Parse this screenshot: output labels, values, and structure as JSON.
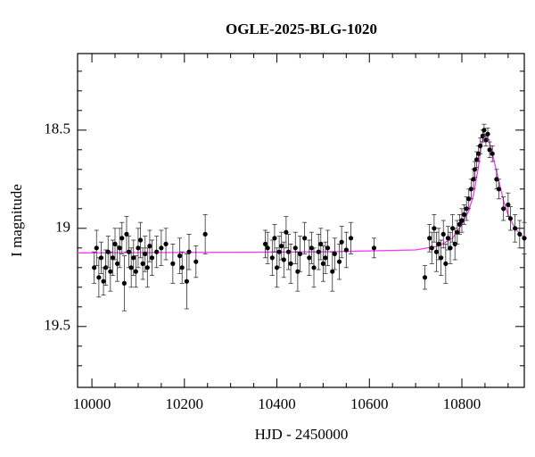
{
  "chart_data": {
    "type": "scatter",
    "title": "OGLE-2025-BLG-1020",
    "x_label": "HJD - 2450000",
    "y_label": "I magnitude",
    "xlim": [
      9969,
      10935
    ],
    "ylim": [
      19.81,
      18.11
    ],
    "xticks": [
      10000,
      10200,
      10400,
      10600,
      10800
    ],
    "xticks_minor": [
      10050,
      10100,
      10150,
      10250,
      10300,
      10350,
      10450,
      10500,
      10550,
      10650,
      10700,
      10750,
      10850,
      10900
    ],
    "yticks": [
      18.5,
      19,
      19.5
    ],
    "yticks_minor": [
      18.2,
      18.3,
      18.4,
      18.6,
      18.7,
      18.8,
      18.9,
      19.1,
      19.2,
      19.3,
      19.4,
      19.6,
      19.7
    ],
    "color": "#000000",
    "x": [
      10005,
      10010,
      10015,
      10020,
      10025,
      10030,
      10035,
      10040,
      10045,
      10050,
      10055,
      10060,
      10065,
      10070,
      10075,
      10080,
      10085,
      10090,
      10095,
      10100,
      10105,
      10110,
      10115,
      10120,
      10125,
      10130,
      10140,
      10150,
      10160,
      10175,
      10190,
      10195,
      10205,
      10210,
      10225,
      10245,
      10375,
      10380,
      10390,
      10395,
      10400,
      10405,
      10410,
      10415,
      10420,
      10425,
      10430,
      10440,
      10445,
      10450,
      10460,
      10470,
      10475,
      10480,
      10490,
      10495,
      10500,
      10505,
      10510,
      10520,
      10525,
      10535,
      10540,
      10550,
      10560,
      10610,
      10720,
      10730,
      10735,
      10740,
      10745,
      10750,
      10755,
      10760,
      10765,
      10770,
      10775,
      10780,
      10785,
      10790,
      10795,
      10800,
      10805,
      10810,
      10815,
      10820,
      10825,
      10828,
      10832,
      10836,
      10840,
      10845,
      10848,
      10852,
      10856,
      10860,
      10866,
      10875,
      10880,
      10890,
      10900,
      10905,
      10915,
      10925,
      10935
    ],
    "values": [
      19.2,
      19.1,
      19.25,
      19.15,
      19.27,
      19.2,
      19.12,
      19.22,
      19.15,
      19.08,
      19.18,
      19.1,
      19.05,
      19.28,
      19.03,
      19.12,
      19.2,
      19.15,
      19.22,
      19.1,
      19.06,
      19.18,
      19.13,
      19.2,
      19.09,
      19.15,
      19.12,
      19.1,
      19.08,
      19.18,
      19.14,
      19.2,
      19.27,
      19.12,
      19.17,
      19.03,
      19.08,
      19.1,
      19.15,
      19.05,
      19.2,
      19.12,
      19.09,
      19.16,
      19.02,
      19.12,
      19.18,
      19.1,
      19.22,
      19.13,
      19.05,
      19.15,
      19.1,
      19.2,
      19.12,
      19.08,
      19.18,
      19.15,
      19.1,
      19.22,
      19.13,
      19.17,
      19.07,
      19.11,
      19.05,
      19.1,
      19.25,
      19.05,
      19.1,
      19.0,
      19.12,
      19.08,
      19.15,
      19.03,
      19.18,
      19.05,
      19.1,
      19.0,
      19.08,
      19.02,
      18.98,
      18.96,
      18.93,
      18.9,
      18.85,
      18.8,
      18.75,
      18.7,
      18.65,
      18.62,
      18.58,
      18.53,
      18.5,
      18.55,
      18.52,
      18.6,
      18.62,
      18.75,
      18.8,
      18.9,
      18.88,
      18.95,
      19.0,
      19.03,
      19.05
    ],
    "errors": [
      0.08,
      0.09,
      0.1,
      0.08,
      0.07,
      0.09,
      0.08,
      0.1,
      0.09,
      0.08,
      0.09,
      0.1,
      0.08,
      0.14,
      0.09,
      0.08,
      0.1,
      0.09,
      0.08,
      0.1,
      0.09,
      0.08,
      0.09,
      0.1,
      0.08,
      0.09,
      0.08,
      0.09,
      0.08,
      0.1,
      0.09,
      0.08,
      0.14,
      0.09,
      0.08,
      0.1,
      0.07,
      0.08,
      0.09,
      0.07,
      0.1,
      0.08,
      0.07,
      0.09,
      0.08,
      0.09,
      0.1,
      0.08,
      0.1,
      0.09,
      0.08,
      0.09,
      0.08,
      0.1,
      0.09,
      0.08,
      0.09,
      0.08,
      0.09,
      0.1,
      0.08,
      0.09,
      0.08,
      0.09,
      0.08,
      0.05,
      0.06,
      0.07,
      0.08,
      0.07,
      0.1,
      0.08,
      0.09,
      0.07,
      0.1,
      0.06,
      0.08,
      0.07,
      0.08,
      0.06,
      0.05,
      0.06,
      0.05,
      0.06,
      0.05,
      0.05,
      0.05,
      0.04,
      0.04,
      0.04,
      0.04,
      0.03,
      0.03,
      0.03,
      0.03,
      0.04,
      0.04,
      0.05,
      0.05,
      0.06,
      0.06,
      0.06,
      0.07,
      0.07,
      0.08
    ],
    "model": {
      "color": "#ff33ff",
      "x": [
        9969,
        10500,
        10700,
        10750,
        10765,
        10780,
        10800,
        10815,
        10825,
        10835,
        10842,
        10848,
        10855,
        10862,
        10870,
        10880,
        10890,
        10900,
        10915,
        10935
      ],
      "values": [
        19.125,
        19.12,
        19.11,
        19.09,
        19.07,
        19.05,
        18.98,
        18.91,
        18.83,
        18.7,
        18.58,
        18.52,
        18.53,
        18.58,
        18.66,
        18.76,
        18.86,
        18.93,
        19.0,
        19.05
      ]
    }
  }
}
